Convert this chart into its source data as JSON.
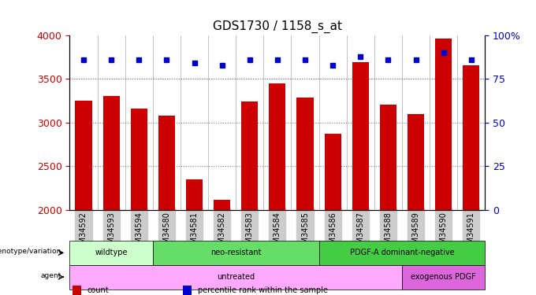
{
  "title": "GDS1730 / 1158_s_at",
  "samples": [
    "GSM34592",
    "GSM34593",
    "GSM34594",
    "GSM34580",
    "GSM34581",
    "GSM34582",
    "GSM34583",
    "GSM34584",
    "GSM34585",
    "GSM34586",
    "GSM34587",
    "GSM34588",
    "GSM34589",
    "GSM34590",
    "GSM34591"
  ],
  "counts": [
    3255,
    3305,
    3165,
    3080,
    2350,
    2110,
    3240,
    3450,
    3290,
    2870,
    3690,
    3210,
    3100,
    3960,
    3660
  ],
  "percentile_ranks": [
    86,
    86,
    86,
    86,
    84,
    83,
    86,
    86,
    86,
    83,
    88,
    86,
    86,
    90,
    86
  ],
  "bar_color": "#cc0000",
  "dot_color": "#0000cc",
  "ylim_left": [
    2000,
    4000
  ],
  "ylim_right": [
    0,
    100
  ],
  "right_ticks": [
    0,
    25,
    50,
    75,
    100
  ],
  "right_tick_labels": [
    "0",
    "25",
    "50",
    "75",
    "100%"
  ],
  "left_ticks": [
    2000,
    2500,
    3000,
    3500,
    4000
  ],
  "grid_values": [
    2500,
    3000,
    3500
  ],
  "genotype_groups": [
    {
      "label": "wildtype",
      "start": 0,
      "end": 3,
      "color": "#ccffcc"
    },
    {
      "label": "neo-resistant",
      "start": 3,
      "end": 9,
      "color": "#66dd66"
    },
    {
      "label": "PDGF-A dominant-negative",
      "start": 9,
      "end": 15,
      "color": "#44cc44"
    }
  ],
  "agent_groups": [
    {
      "label": "untreated",
      "start": 0,
      "end": 12,
      "color": "#ffaaff"
    },
    {
      "label": "exogenous PDGF",
      "start": 12,
      "end": 15,
      "color": "#dd66dd"
    }
  ],
  "legend_items": [
    {
      "label": "count",
      "color": "#cc0000"
    },
    {
      "label": "percentile rank within the sample",
      "color": "#0000cc"
    }
  ],
  "xticklabel_bg": "#cccccc"
}
